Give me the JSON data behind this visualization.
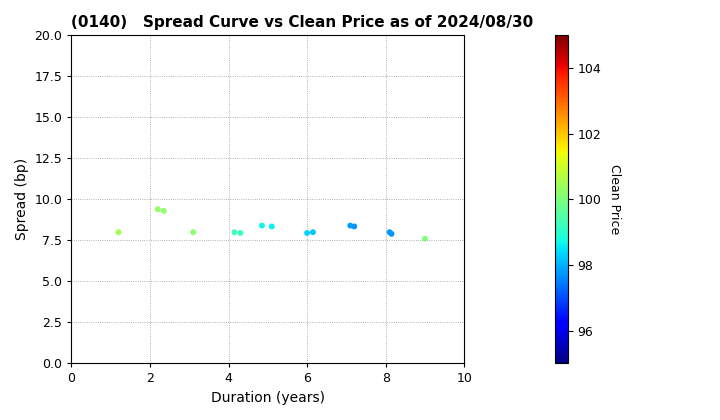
{
  "title": "(0140)   Spread Curve vs Clean Price as of 2024/08/30",
  "xlabel": "Duration (years)",
  "ylabel": "Spread (bp)",
  "colorbar_label": "Clean Price",
  "xlim": [
    0,
    10
  ],
  "ylim": [
    0.0,
    20.0
  ],
  "yticks": [
    0.0,
    2.5,
    5.0,
    7.5,
    10.0,
    12.5,
    15.0,
    17.5,
    20.0
  ],
  "xticks": [
    0,
    2,
    4,
    6,
    8,
    10
  ],
  "cmap_vmin": 95,
  "cmap_vmax": 105,
  "colorbar_ticks": [
    96,
    98,
    100,
    102,
    104
  ],
  "points": [
    {
      "duration": 1.2,
      "spread": 8.0,
      "price": 100.5
    },
    {
      "duration": 2.2,
      "spread": 9.4,
      "price": 100.3
    },
    {
      "duration": 2.35,
      "spread": 9.3,
      "price": 100.2
    },
    {
      "duration": 3.1,
      "spread": 8.0,
      "price": 100.2
    },
    {
      "duration": 4.15,
      "spread": 8.0,
      "price": 99.3
    },
    {
      "duration": 4.3,
      "spread": 7.95,
      "price": 99.2
    },
    {
      "duration": 4.85,
      "spread": 8.4,
      "price": 98.7
    },
    {
      "duration": 5.1,
      "spread": 8.35,
      "price": 98.6
    },
    {
      "duration": 6.0,
      "spread": 7.95,
      "price": 98.3
    },
    {
      "duration": 6.15,
      "spread": 8.0,
      "price": 98.2
    },
    {
      "duration": 7.1,
      "spread": 8.4,
      "price": 97.8
    },
    {
      "duration": 7.2,
      "spread": 8.35,
      "price": 97.7
    },
    {
      "duration": 8.1,
      "spread": 8.0,
      "price": 97.8
    },
    {
      "duration": 8.15,
      "spread": 7.9,
      "price": 97.7
    },
    {
      "duration": 9.0,
      "spread": 7.6,
      "price": 100.0
    }
  ],
  "marker_size": 18,
  "bg_color": "#ffffff",
  "title_fontsize": 11,
  "axis_fontsize": 10,
  "tick_fontsize": 9,
  "colorbar_fontsize": 9
}
